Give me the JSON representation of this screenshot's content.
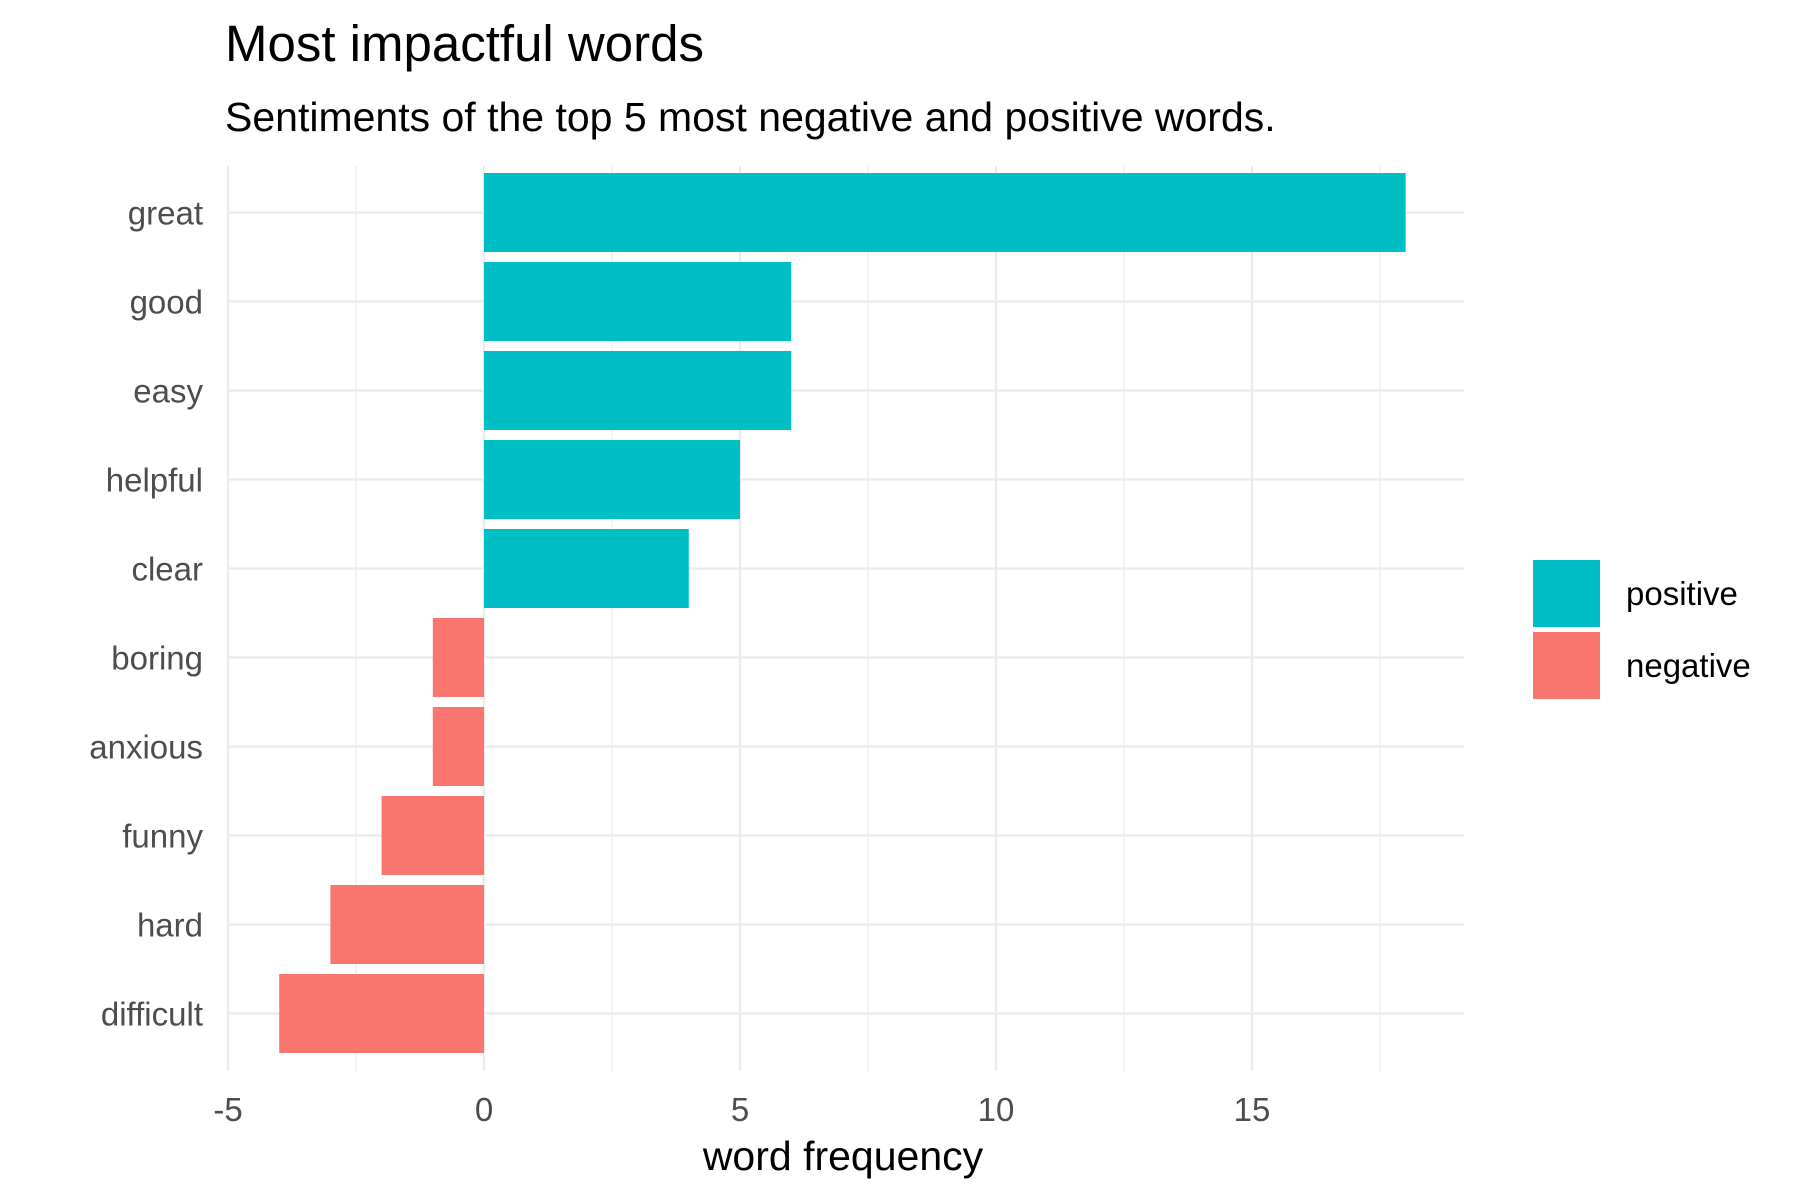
{
  "chart_data": {
    "type": "bar",
    "orientation": "horizontal",
    "title": "Most impactful words",
    "subtitle": "Sentiments of the top 5 most negative and positive words.",
    "xlabel": "word frequency",
    "ylabel": "",
    "xlim": [
      -5,
      19
    ],
    "x_ticks": [
      -5,
      0,
      5,
      10,
      15
    ],
    "grid": true,
    "legend_position": "right",
    "categories": [
      "great",
      "good",
      "easy",
      "helpful",
      "clear",
      "boring",
      "anxious",
      "funny",
      "hard",
      "difficult"
    ],
    "values": [
      18,
      6,
      6,
      5,
      4,
      -1,
      -1,
      -2,
      -3,
      -4
    ],
    "sentiment": [
      "positive",
      "positive",
      "positive",
      "positive",
      "positive",
      "negative",
      "negative",
      "negative",
      "negative",
      "negative"
    ],
    "legend": [
      {
        "name": "positive",
        "color": "#00BFC4"
      },
      {
        "name": "negative",
        "color": "#F8766D"
      }
    ]
  }
}
